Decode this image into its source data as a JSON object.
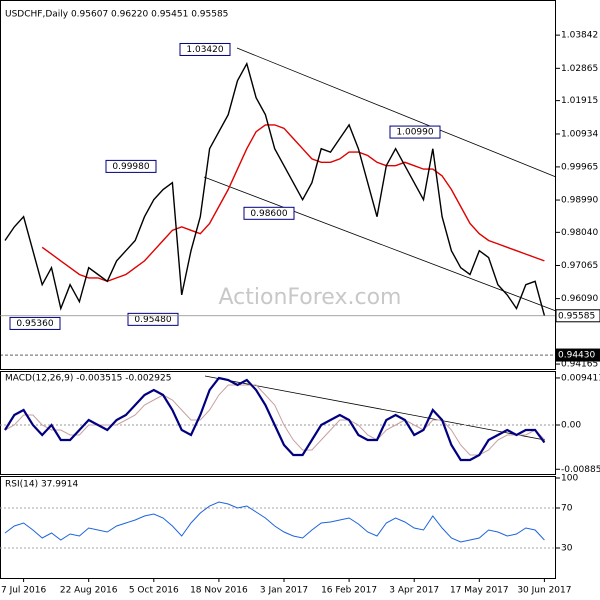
{
  "chart_data": [
    {
      "type": "line",
      "title": "USDCHF,Daily 0.95607 0.96220 0.95451 0.95585",
      "watermark": "ActionForex.com",
      "ylim": [
        0.9399,
        1.0464
      ],
      "yticks": [
        1.03842,
        1.02865,
        1.01915,
        1.00934,
        0.99965,
        {
          "value": 0.9899,
          "label": "0.98990"
        },
        {
          "value": 0.9804,
          "label": "0.98040"
        },
        0.97065,
        {
          "value": 0.9609,
          "label": "0.96090"
        },
        0.94165
      ],
      "series": [
        {
          "name": "USDCHF",
          "color": "#000000",
          "values": [
            0.978,
            0.982,
            0.985,
            0.975,
            0.965,
            0.97,
            0.958,
            0.965,
            0.96,
            0.97,
            0.968,
            0.966,
            0.972,
            0.975,
            0.978,
            0.985,
            0.99,
            0.993,
            0.995,
            0.962,
            0.975,
            0.985,
            1.005,
            1.01,
            1.015,
            1.025,
            1.03,
            1.02,
            1.015,
            1.005,
            1.0,
            0.995,
            0.99,
            0.995,
            1.005,
            1.004,
            1.008,
            1.012,
            1.005,
            0.995,
            0.985,
            1.0,
            1.005,
            1.0,
            0.995,
            0.99,
            1.005,
            0.985,
            0.975,
            0.97,
            0.968,
            0.975,
            0.973,
            0.965,
            0.962,
            0.958,
            0.965,
            0.966,
            0.9559
          ]
        },
        {
          "name": "MA",
          "color": "#e00000",
          "values": [
            null,
            null,
            null,
            null,
            0.976,
            0.974,
            0.972,
            0.97,
            0.968,
            0.967,
            0.967,
            0.966,
            0.967,
            0.968,
            0.97,
            0.972,
            0.975,
            0.978,
            0.981,
            0.982,
            0.981,
            0.98,
            0.983,
            0.988,
            0.993,
            0.999,
            1.005,
            1.01,
            1.012,
            1.012,
            1.011,
            1.008,
            1.005,
            1.002,
            1.001,
            1.001,
            1.002,
            1.004,
            1.004,
            1.003,
            1.001,
            1.0,
            1.0,
            1.001,
            1.0,
            0.999,
            0.999,
            0.997,
            0.993,
            0.988,
            0.983,
            0.98,
            0.978,
            0.977,
            0.976,
            0.975,
            0.974,
            0.973,
            0.972
          ]
        }
      ],
      "annotations": [
        {
          "value": 1.0342,
          "label": "1.03420"
        },
        {
          "value": 0.9998,
          "label": "0.99980"
        },
        {
          "value": 0.986,
          "label": "0.98600"
        },
        {
          "value": 1.0099,
          "label": "1.00990"
        },
        {
          "value": 0.9536,
          "label": "0.95360"
        },
        {
          "value": 0.9548,
          "label": "0.95480"
        }
      ],
      "markers": [
        {
          "value": 0.95585,
          "label": "0.95585"
        },
        {
          "value": 0.9443,
          "label": "0.94430"
        }
      ]
    },
    {
      "type": "line",
      "title": "MACD(12,26,9) -0.003515 -0.002925",
      "ylim": [
        -0.01,
        0.0106
      ],
      "yticks": [
        0.009411,
        {
          "value": 0,
          "label": "0.00"
        },
        -0.008852
      ],
      "series": [
        {
          "name": "MACD",
          "color": "#000080",
          "values": [
            -0.001,
            0.002,
            0.003,
            0.0,
            -0.002,
            0.0,
            -0.003,
            -0.003,
            -0.001,
            0.001,
            0.0,
            -0.001,
            0.001,
            0.002,
            0.004,
            0.006,
            0.007,
            0.006,
            0.003,
            -0.001,
            -0.002,
            0.002,
            0.007,
            0.0094,
            0.009,
            0.008,
            0.009,
            0.007,
            0.004,
            0.0,
            -0.004,
            -0.006,
            -0.006,
            -0.003,
            0.0,
            0.001,
            0.002,
            0.001,
            -0.002,
            -0.003,
            -0.003,
            0.001,
            0.002,
            0.001,
            -0.002,
            -0.001,
            0.003,
            0.001,
            -0.004,
            -0.007,
            -0.007,
            -0.006,
            -0.003,
            -0.002,
            -0.001,
            -0.002,
            -0.001,
            -0.001,
            -0.0035
          ]
        },
        {
          "name": "Signal",
          "color": "#c8a0a0",
          "values": [
            -0.001,
            0.0,
            0.002,
            0.002,
            0.0,
            -0.001,
            -0.001,
            -0.002,
            -0.002,
            0.0,
            0.0,
            0.0,
            0.0,
            0.001,
            0.002,
            0.004,
            0.005,
            0.006,
            0.005,
            0.003,
            0.001,
            0.001,
            0.003,
            0.006,
            0.008,
            0.008,
            0.008,
            0.008,
            0.006,
            0.004,
            0.0,
            -0.003,
            -0.005,
            -0.005,
            -0.003,
            -0.001,
            0.001,
            0.001,
            0.0,
            -0.002,
            -0.003,
            -0.001,
            0.0,
            0.001,
            0.0,
            -0.001,
            0.001,
            0.001,
            -0.001,
            -0.004,
            -0.006,
            -0.006,
            -0.005,
            -0.003,
            -0.002,
            -0.002,
            -0.002,
            -0.001,
            -0.0029
          ]
        }
      ]
    },
    {
      "type": "line",
      "title": "RSI(14) 37.9914",
      "ylim": [
        0,
        100
      ],
      "yticks": [
        100,
        70,
        30
      ],
      "categories": [
        null,
        null,
        "7 Jul 2016",
        null,
        null,
        null,
        null,
        null,
        null,
        "22 Aug 2016",
        null,
        null,
        null,
        null,
        null,
        null,
        "5 Oct 2016",
        null,
        null,
        null,
        null,
        null,
        null,
        "18 Nov 2016",
        null,
        null,
        null,
        null,
        null,
        null,
        "3 Jan 2017",
        null,
        null,
        null,
        null,
        null,
        null,
        "16 Feb 2017",
        null,
        null,
        null,
        null,
        null,
        null,
        "3 Apr 2017",
        null,
        null,
        null,
        null,
        null,
        null,
        "17 May 2017",
        null,
        null,
        null,
        null,
        null,
        null,
        "30 Jun 2017"
      ],
      "series": [
        {
          "name": "RSI",
          "color": "#1e64dc",
          "values": [
            45,
            52,
            55,
            48,
            40,
            45,
            38,
            44,
            42,
            50,
            48,
            46,
            52,
            55,
            58,
            62,
            64,
            60,
            52,
            42,
            55,
            65,
            72,
            76,
            74,
            70,
            72,
            66,
            60,
            52,
            46,
            42,
            40,
            48,
            55,
            56,
            58,
            60,
            54,
            46,
            42,
            55,
            60,
            56,
            50,
            48,
            62,
            50,
            40,
            36,
            38,
            40,
            48,
            46,
            42,
            44,
            50,
            48,
            37.9914
          ]
        }
      ]
    }
  ]
}
